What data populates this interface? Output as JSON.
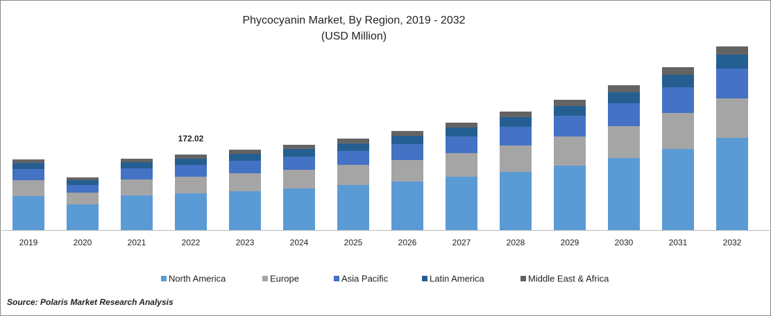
{
  "chart_data": {
    "type": "stacked_bar",
    "title": "Phycocyanin Market, By Region, 2019 - 2032",
    "subtitle": "(USD Million)",
    "categories": [
      "2019",
      "2020",
      "2021",
      "2022",
      "2023",
      "2024",
      "2025",
      "2026",
      "2027",
      "2028",
      "2029",
      "2030",
      "2031",
      "2032"
    ],
    "series": [
      {
        "name": "North America",
        "color": "#5b9bd5",
        "values": [
          77.3,
          58.4,
          78.9,
          83.63,
          88.4,
          94.7,
          102.6,
          110.5,
          121.5,
          132.6,
          146.8,
          164.1,
          184.6,
          209.9
        ]
      },
      {
        "name": "Europe",
        "color": "#a5a5a5",
        "values": [
          36.3,
          26.8,
          36.3,
          37.87,
          41.0,
          42.6,
          45.8,
          48.9,
          53.7,
          60.0,
          66.3,
          72.6,
          82.1,
          89.9
        ]
      },
      {
        "name": "Asia Pacific",
        "color": "#4472c4",
        "values": [
          25.2,
          17.4,
          25.2,
          26.83,
          28.4,
          30.0,
          31.6,
          36.3,
          37.9,
          42.6,
          47.3,
          52.1,
          58.4,
          67.9
        ]
      },
      {
        "name": "Latin America",
        "color": "#255e91",
        "values": [
          14.2,
          11.0,
          14.2,
          14.2,
          15.8,
          17.4,
          17.4,
          18.9,
          20.5,
          22.1,
          22.1,
          25.2,
          28.4,
          31.6
        ]
      },
      {
        "name": "Middle East & Africa",
        "color": "#636363",
        "values": [
          7.9,
          6.3,
          7.9,
          9.49,
          9.5,
          9.5,
          11.0,
          11.0,
          11.0,
          12.6,
          14.2,
          15.8,
          17.4,
          18.9
        ]
      }
    ],
    "annotation": {
      "x": "2022",
      "text": "172.02"
    },
    "legend": "bottom",
    "source": "Source: Polaris  Market Research Analysis"
  }
}
